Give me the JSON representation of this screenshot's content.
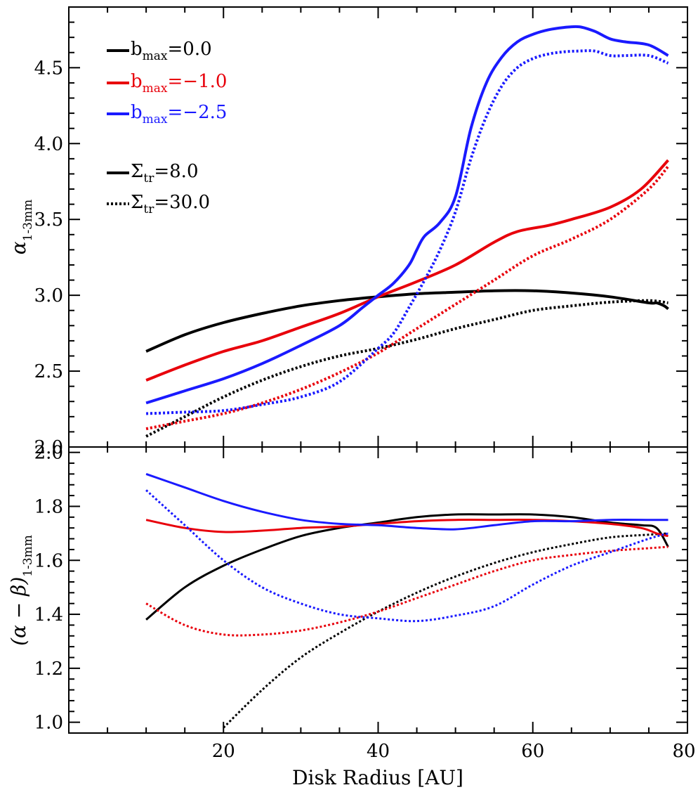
{
  "chart_data": [
    {
      "type": "line",
      "panel": "top",
      "title": "",
      "xlabel": "",
      "ylabel": "α1-3mm",
      "ylabel_main": "α",
      "ylabel_sub": "1-3mm",
      "xlim": [
        0,
        80
      ],
      "ylim": [
        2.0,
        4.9
      ],
      "yticks": [
        2.0,
        2.5,
        3.0,
        3.5,
        4.0,
        4.5
      ],
      "ytick_labels": [
        "2.0",
        "2.5",
        "3.0",
        "3.5",
        "4.0",
        "4.5"
      ],
      "legend_position": "top-left",
      "legend": [
        {
          "label": "bmax=0.0",
          "main": "b",
          "sub": "max",
          "rest": "=0.0",
          "color": "#000000",
          "style": "solid"
        },
        {
          "label": "bmax=−1.0",
          "main": "b",
          "sub": "max",
          "rest": "=−1.0",
          "color": "#e8000b",
          "style": "solid"
        },
        {
          "label": "bmax=−2.5",
          "main": "b",
          "sub": "max",
          "rest": "=−2.5",
          "color": "#1a1aff",
          "style": "solid"
        },
        {
          "label": "Σtr=8.0",
          "main": "Σ",
          "sub": "tr",
          "rest": "=8.0",
          "color": "#000000",
          "style": "solid"
        },
        {
          "label": "Σtr=30.0",
          "main": "Σ",
          "sub": "tr",
          "rest": "=30.0",
          "color": "#000000",
          "style": "dotted"
        }
      ],
      "series": [
        {
          "name": "bmax=0.0, Σtr=8.0",
          "color": "#000000",
          "style": "solid",
          "x": [
            10,
            15,
            20,
            25,
            30,
            35,
            40,
            45,
            50,
            55,
            60,
            65,
            70,
            75,
            76,
            77,
            77.5
          ],
          "y": [
            2.63,
            2.74,
            2.82,
            2.88,
            2.93,
            2.965,
            2.99,
            3.01,
            3.02,
            3.03,
            3.03,
            3.015,
            2.99,
            2.95,
            2.95,
            2.93,
            2.91
          ]
        },
        {
          "name": "bmax=0.0, Σtr=30.0",
          "color": "#000000",
          "style": "dotted",
          "x": [
            10,
            15,
            20,
            25,
            30,
            35,
            40,
            45,
            50,
            55,
            60,
            65,
            70,
            75,
            77.5
          ],
          "y": [
            2.07,
            2.2,
            2.33,
            2.44,
            2.53,
            2.6,
            2.65,
            2.71,
            2.78,
            2.84,
            2.9,
            2.93,
            2.955,
            2.965,
            2.95
          ]
        },
        {
          "name": "bmax=−1.0, Σtr=8.0",
          "color": "#e8000b",
          "style": "solid",
          "x": [
            10,
            15,
            20,
            25,
            30,
            35,
            40,
            45,
            50,
            55,
            58,
            62,
            65,
            70,
            74,
            77.5
          ],
          "y": [
            2.44,
            2.54,
            2.63,
            2.7,
            2.79,
            2.88,
            2.99,
            3.09,
            3.2,
            3.35,
            3.42,
            3.46,
            3.5,
            3.58,
            3.7,
            3.89
          ]
        },
        {
          "name": "bmax=−1.0, Σtr=30.0",
          "color": "#e8000b",
          "style": "dotted",
          "x": [
            10,
            15,
            20,
            25,
            30,
            35,
            40,
            45,
            50,
            55,
            60,
            65,
            70,
            75,
            77.5
          ],
          "y": [
            2.12,
            2.17,
            2.22,
            2.29,
            2.38,
            2.49,
            2.62,
            2.78,
            2.94,
            3.1,
            3.26,
            3.37,
            3.5,
            3.7,
            3.85
          ]
        },
        {
          "name": "bmax=−2.5, Σtr=8.0",
          "color": "#1a1aff",
          "style": "solid",
          "x": [
            10,
            15,
            20,
            25,
            30,
            35,
            38,
            40,
            42,
            44,
            45,
            46,
            48,
            50,
            52,
            54,
            56,
            58,
            60,
            62,
            64,
            66,
            68,
            70,
            72,
            75,
            77.5
          ],
          "y": [
            2.29,
            2.37,
            2.45,
            2.55,
            2.67,
            2.8,
            2.92,
            3.0,
            3.08,
            3.2,
            3.3,
            3.39,
            3.48,
            3.65,
            4.1,
            4.4,
            4.57,
            4.67,
            4.72,
            4.75,
            4.765,
            4.77,
            4.74,
            4.69,
            4.67,
            4.65,
            4.58
          ]
        },
        {
          "name": "bmax=−2.5, Σtr=30.0",
          "color": "#1a1aff",
          "style": "dotted",
          "x": [
            10,
            15,
            20,
            25,
            30,
            35,
            40,
            42,
            44,
            46,
            48,
            50,
            52,
            54,
            56,
            58,
            60,
            62,
            64,
            66,
            68,
            70,
            72,
            75,
            77.5
          ],
          "y": [
            2.22,
            2.23,
            2.24,
            2.28,
            2.33,
            2.43,
            2.65,
            2.75,
            2.92,
            3.1,
            3.3,
            3.55,
            3.9,
            4.18,
            4.38,
            4.5,
            4.56,
            4.59,
            4.605,
            4.61,
            4.61,
            4.58,
            4.58,
            4.58,
            4.53
          ]
        }
      ]
    },
    {
      "type": "line",
      "panel": "bottom",
      "title": "",
      "xlabel": "Disk Radius [AU]",
      "ylabel": "(α − β)1-3mm",
      "ylabel_main": "(α − β)",
      "ylabel_sub": "1-3mm",
      "xlim": [
        0,
        80
      ],
      "ylim": [
        0.96,
        2.02
      ],
      "xticks": [
        20,
        40,
        60,
        80
      ],
      "xtick_labels": [
        "20",
        "40",
        "60",
        "80"
      ],
      "yticks": [
        1.0,
        1.2,
        1.4,
        1.6,
        1.8,
        2.0
      ],
      "ytick_labels": [
        "1.0",
        "1.2",
        "1.4",
        "1.6",
        "1.8",
        "2.0"
      ],
      "series": [
        {
          "name": "bmax=0.0, Σtr=8.0",
          "color": "#000000",
          "style": "solid",
          "x": [
            10,
            15,
            20,
            25,
            30,
            35,
            40,
            45,
            50,
            55,
            60,
            65,
            70,
            74,
            76,
            77.5
          ],
          "y": [
            1.38,
            1.5,
            1.58,
            1.64,
            1.69,
            1.72,
            1.74,
            1.76,
            1.77,
            1.77,
            1.77,
            1.76,
            1.74,
            1.73,
            1.72,
            1.65
          ]
        },
        {
          "name": "bmax=0.0, Σtr=30.0",
          "color": "#000000",
          "style": "dotted",
          "x": [
            20,
            25,
            30,
            35,
            40,
            45,
            50,
            55,
            60,
            65,
            70,
            75,
            77.5
          ],
          "y": [
            0.98,
            1.12,
            1.24,
            1.33,
            1.41,
            1.48,
            1.54,
            1.59,
            1.63,
            1.66,
            1.685,
            1.695,
            1.7
          ]
        },
        {
          "name": "bmax=−1.0, Σtr=8.0",
          "color": "#e8000b",
          "style": "solid",
          "x": [
            10,
            15,
            20,
            25,
            30,
            35,
            40,
            45,
            50,
            55,
            60,
            65,
            70,
            74,
            76,
            77.5
          ],
          "y": [
            1.75,
            1.72,
            1.705,
            1.71,
            1.72,
            1.725,
            1.735,
            1.745,
            1.75,
            1.75,
            1.75,
            1.745,
            1.735,
            1.72,
            1.7,
            1.69
          ]
        },
        {
          "name": "bmax=−1.0, Σtr=30.0",
          "color": "#e8000b",
          "style": "dotted",
          "x": [
            10,
            15,
            20,
            25,
            30,
            35,
            40,
            45,
            50,
            55,
            60,
            65,
            70,
            75,
            77.5
          ],
          "y": [
            1.44,
            1.36,
            1.325,
            1.325,
            1.34,
            1.37,
            1.41,
            1.46,
            1.51,
            1.56,
            1.6,
            1.62,
            1.635,
            1.645,
            1.65
          ]
        },
        {
          "name": "bmax=−2.5, Σtr=8.0",
          "color": "#1a1aff",
          "style": "solid",
          "x": [
            10,
            15,
            20,
            25,
            30,
            35,
            40,
            45,
            50,
            55,
            60,
            65,
            70,
            75,
            77.5
          ],
          "y": [
            1.92,
            1.87,
            1.82,
            1.78,
            1.75,
            1.735,
            1.73,
            1.72,
            1.715,
            1.73,
            1.745,
            1.745,
            1.75,
            1.75,
            1.75
          ]
        },
        {
          "name": "bmax=−2.5, Σtr=30.0",
          "color": "#1a1aff",
          "style": "dotted",
          "x": [
            10,
            15,
            20,
            25,
            30,
            35,
            40,
            45,
            50,
            55,
            60,
            65,
            70,
            75,
            77.5
          ],
          "y": [
            1.86,
            1.73,
            1.6,
            1.5,
            1.44,
            1.4,
            1.385,
            1.375,
            1.395,
            1.43,
            1.51,
            1.58,
            1.63,
            1.68,
            1.7
          ]
        }
      ]
    }
  ]
}
